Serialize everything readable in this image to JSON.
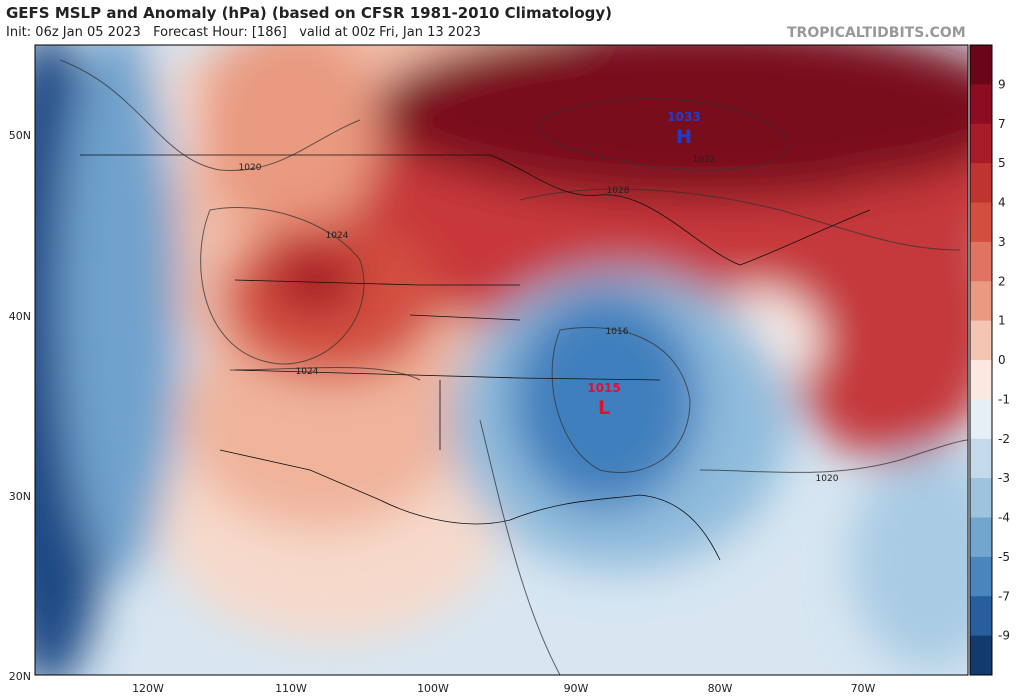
{
  "header": {
    "title": "GEFS MSLP and Anomaly (hPa) (based on CFSR 1981-2010 Climatology)",
    "subtitle": "Init: 06z Jan 05 2023   Forecast Hour: [186]   valid at 00z Fri, Jan 13 2023",
    "credit": "TROPICALTIDBITS.COM"
  },
  "axes": {
    "lat_labels": [
      "50N",
      "40N",
      "30N",
      "20N"
    ],
    "lon_labels": [
      "120W",
      "110W",
      "100W",
      "90W",
      "80W",
      "70W"
    ]
  },
  "colorbar": {
    "labels": [
      9,
      7,
      5,
      4,
      3,
      2,
      1,
      0,
      -1,
      -2,
      -3,
      -4,
      -5,
      -7,
      -9
    ],
    "colors": [
      "#6a0617",
      "#8c0c21",
      "#a81c27",
      "#bf3431",
      "#d24f40",
      "#e07460",
      "#eb9a82",
      "#f5c5b3",
      "#fbe8df",
      "#e6eff6",
      "#c4daea",
      "#9dc3df",
      "#72a6cf",
      "#4a86bd",
      "#275f9e",
      "#123a6c"
    ]
  },
  "map": {
    "contour_labels": [
      "1020",
      "1024",
      "1024",
      "1016",
      "1032",
      "1028",
      "1020"
    ],
    "high": {
      "value": "1033",
      "symbol": "H"
    },
    "low": {
      "value": "1015",
      "symbol": "L"
    }
  }
}
